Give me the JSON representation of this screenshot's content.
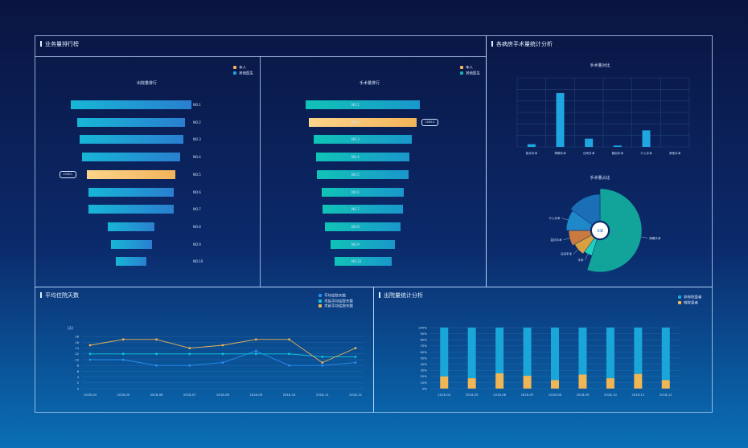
{
  "panels": {
    "ranking_title": "业务量排行榜",
    "surgery_stats_title": "各病房手术量统计分析",
    "avg_stay_title": "平均住院天数",
    "discharge_title": "出院量统计分析"
  },
  "colors": {
    "bar_blue": "#1aa6d8",
    "bar_teal": "#12b3a6",
    "highlight": "#f2b45a",
    "line_blue": "#2a8ff0",
    "line_cyan": "#12c7d9",
    "line_orange": "#f0b555"
  },
  "chart_data": [
    {
      "id": "discharge_rank",
      "type": "bar",
      "title": "出院量排行",
      "legend": [
        "本人",
        "其他医生"
      ],
      "categories": [
        "NO.1",
        "NO.2",
        "NO.3",
        "NO.4",
        "NO.5",
        "NO.6",
        "NO.7",
        "NO.8",
        "NO.9",
        "NO.10"
      ],
      "values": [
        100,
        89,
        86,
        81,
        73,
        71,
        71,
        39,
        34,
        25
      ],
      "highlight_index": 4,
      "highlight_label": "1000人"
    },
    {
      "id": "surgery_rank",
      "type": "bar",
      "title": "手术量排行",
      "legend": [
        "本人",
        "其他医生"
      ],
      "categories": [
        "NO.1",
        "NO.2",
        "NO.3",
        "NO.4",
        "NO.5",
        "NO.6",
        "NO.7",
        "NO.8",
        "NO.9",
        "NO.10"
      ],
      "values": [
        100,
        95,
        86,
        81,
        80,
        72,
        70,
        66,
        57,
        50
      ],
      "highlight_index": 1,
      "highlight_label": "1000人"
    },
    {
      "id": "surgery_bar",
      "type": "bar",
      "title": "手术量对比",
      "categories": [
        "急诊手术",
        "择期手术",
        "日间手术",
        "微创手术",
        "介入手术",
        "其他手术"
      ],
      "values": [
        4,
        78,
        12,
        2,
        24,
        0
      ],
      "ylim": [
        0,
        100
      ]
    },
    {
      "id": "surgery_pie",
      "type": "pie",
      "title": "手术量占比",
      "center_label": "总量",
      "slices": [
        {
          "name": "择期手术",
          "value": 55,
          "color": "#12a39a"
        },
        {
          "name": "手术",
          "value": 5,
          "color": "#20d0c0"
        },
        {
          "name": "日间手术",
          "value": 7,
          "color": "#d8a040"
        },
        {
          "name": "急诊手术",
          "value": 8,
          "color": "#c97a3e"
        },
        {
          "name": "介入手术",
          "value": 10,
          "color": "#1e88c8"
        },
        {
          "name": "",
          "value": 15,
          "color": "#1a6fb6"
        }
      ]
    },
    {
      "id": "avg_stay",
      "type": "line",
      "ylabel": "(天)",
      "legend": [
        "平均住院天数",
        "术后平均住院天数",
        "术前平均住院天数"
      ],
      "categories": [
        "2018-04",
        "2018-05",
        "2018-06",
        "2018-07",
        "2018-08",
        "2018-09",
        "2018-10",
        "2018-11",
        "2018-12"
      ],
      "yticks": [
        0,
        2,
        4,
        6,
        8,
        10,
        12,
        14,
        16,
        18
      ],
      "ylim": [
        0,
        20
      ],
      "series": [
        {
          "name": "平均住院天数",
          "values": [
            10,
            10,
            8,
            8,
            9,
            13,
            8,
            8,
            9
          ]
        },
        {
          "name": "术后平均住院天数",
          "values": [
            12,
            12,
            12,
            12,
            12,
            12,
            12,
            11,
            11
          ]
        },
        {
          "name": "术前平均住院天数",
          "values": [
            15,
            17,
            17,
            14,
            15,
            17,
            17,
            9,
            14
          ]
        }
      ]
    },
    {
      "id": "discharge_stack",
      "type": "bar",
      "stacked": true,
      "legend": [
        "非转院患者",
        "转院患者"
      ],
      "categories": [
        "2018-04",
        "2018-05",
        "2018-06",
        "2018-07",
        "2018-08",
        "2018-09",
        "2018-10",
        "2018-11",
        "2018-12"
      ],
      "yticks": [
        "0%",
        "10%",
        "20%",
        "30%",
        "40%",
        "50%",
        "60%",
        "70%",
        "80%",
        "90%",
        "100%"
      ],
      "series": [
        {
          "name": "非转院患者",
          "values": [
            80,
            83,
            75,
            79,
            86,
            77,
            83,
            76,
            86
          ]
        },
        {
          "name": "转院患者",
          "values": [
            20,
            17,
            25,
            21,
            14,
            23,
            17,
            24,
            14
          ]
        }
      ]
    }
  ]
}
